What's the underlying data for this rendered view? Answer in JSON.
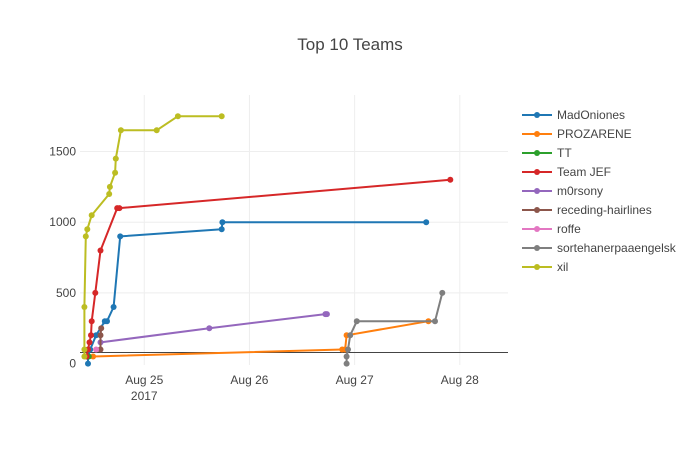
{
  "chart_data": {
    "type": "line",
    "title": "Top 10 Teams",
    "xlabel": "",
    "ylabel": "",
    "xlim": [
      "2017-08-24T09:20",
      "2017-08-28T11:00"
    ],
    "ylim": [
      -10,
      1900
    ],
    "x_ticks": [
      {
        "value": "2017-08-25T00:00",
        "label": "Aug 25",
        "sublabel": "2017"
      },
      {
        "value": "2017-08-26T00:00",
        "label": "Aug 26",
        "sublabel": ""
      },
      {
        "value": "2017-08-27T00:00",
        "label": "Aug 27",
        "sublabel": ""
      },
      {
        "value": "2017-08-28T00:00",
        "label": "Aug 28",
        "sublabel": ""
      }
    ],
    "y_ticks": [
      0,
      500,
      1000,
      1500
    ],
    "grid": true,
    "legend_position": "right",
    "series": [
      {
        "name": "MadOniones",
        "color": "#1f77b4",
        "points": [
          [
            "2017-08-24T11:10",
            0
          ],
          [
            "2017-08-24T11:10",
            50
          ],
          [
            "2017-08-24T11:40",
            100
          ],
          [
            "2017-08-24T13:00",
            200
          ],
          [
            "2017-08-24T15:00",
            300
          ],
          [
            "2017-08-24T15:30",
            300
          ],
          [
            "2017-08-24T17:00",
            400
          ],
          [
            "2017-08-24T18:30",
            900
          ],
          [
            "2017-08-25T17:40",
            950
          ],
          [
            "2017-08-25T17:50",
            1000
          ],
          [
            "2017-08-27T16:20",
            1000
          ]
        ]
      },
      {
        "name": "PROZARENE",
        "color": "#ff7f0e",
        "points": [
          [
            "2017-08-24T12:20",
            50
          ],
          [
            "2017-08-26T21:10",
            100
          ],
          [
            "2017-08-26T21:50",
            100
          ],
          [
            "2017-08-26T22:10",
            200
          ],
          [
            "2017-08-27T16:50",
            300
          ]
        ]
      },
      {
        "name": "TT",
        "color": "#2ca02c",
        "points": [
          [
            "2017-08-24T11:00",
            50
          ],
          [
            "2017-08-24T11:20",
            50
          ]
        ]
      },
      {
        "name": "Team JEF",
        "color": "#d62728",
        "points": [
          [
            "2017-08-24T10:50",
            50
          ],
          [
            "2017-08-24T11:10",
            100
          ],
          [
            "2017-08-24T11:30",
            150
          ],
          [
            "2017-08-24T11:50",
            200
          ],
          [
            "2017-08-24T12:00",
            300
          ],
          [
            "2017-08-24T12:50",
            500
          ],
          [
            "2017-08-24T14:00",
            800
          ],
          [
            "2017-08-24T17:50",
            1100
          ],
          [
            "2017-08-24T18:20",
            1100
          ],
          [
            "2017-08-27T21:50",
            1300
          ]
        ]
      },
      {
        "name": "m0rsony",
        "color": "#9467bd",
        "points": [
          [
            "2017-08-24T14:00",
            150
          ],
          [
            "2017-08-25T14:50",
            250
          ],
          [
            "2017-08-26T17:20",
            350
          ],
          [
            "2017-08-26T17:40",
            350
          ]
        ]
      },
      {
        "name": "receding-hairlines",
        "color": "#8c564b",
        "points": [
          [
            "2017-08-24T14:00",
            100
          ],
          [
            "2017-08-24T14:00",
            200
          ],
          [
            "2017-08-24T14:10",
            250
          ]
        ]
      },
      {
        "name": "roffe",
        "color": "#e377c2",
        "points": [
          [
            "2017-08-24T13:00",
            100
          ]
        ]
      },
      {
        "name": "sortehanerpaaengelsk",
        "color": "#7f7f7f",
        "points": [
          [
            "2017-08-26T22:10",
            0
          ],
          [
            "2017-08-26T22:10",
            50
          ],
          [
            "2017-08-26T22:30",
            100
          ],
          [
            "2017-08-26T23:00",
            200
          ],
          [
            "2017-08-27T00:30",
            300
          ],
          [
            "2017-08-27T18:20",
            300
          ],
          [
            "2017-08-27T20:00",
            500
          ]
        ]
      },
      {
        "name": "xil",
        "color": "#bcbd22",
        "points": [
          [
            "2017-08-24T10:20",
            50
          ],
          [
            "2017-08-24T10:20",
            100
          ],
          [
            "2017-08-24T10:20",
            400
          ],
          [
            "2017-08-24T10:40",
            900
          ],
          [
            "2017-08-24T11:00",
            950
          ],
          [
            "2017-08-24T12:00",
            1050
          ],
          [
            "2017-08-24T16:00",
            1200
          ],
          [
            "2017-08-24T16:10",
            1250
          ],
          [
            "2017-08-24T17:20",
            1350
          ],
          [
            "2017-08-24T17:30",
            1450
          ],
          [
            "2017-08-24T18:40",
            1650
          ],
          [
            "2017-08-25T02:50",
            1650
          ],
          [
            "2017-08-25T07:40",
            1750
          ],
          [
            "2017-08-25T17:40",
            1750
          ]
        ]
      }
    ]
  }
}
